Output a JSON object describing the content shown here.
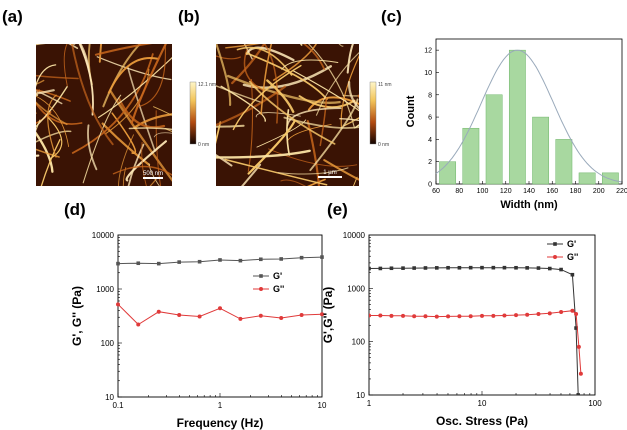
{
  "panels": {
    "a": "(a)",
    "b": "(b)",
    "c": "(c)",
    "d": "(d)",
    "e": "(e)"
  },
  "afm": [
    {
      "scale_max": "12.1 nm",
      "scale_min": "0 nm",
      "scale_bar": "500 nm",
      "seed": 7
    },
    {
      "scale_max": "11 nm",
      "scale_min": "0 nm",
      "scale_bar": "1 µm",
      "seed": 19
    }
  ],
  "chart_data": [
    {
      "type": "bar",
      "panel": "c",
      "xlabel": "Width (nm)",
      "ylabel": "Count",
      "x": [
        70,
        90,
        110,
        130,
        150,
        170,
        190,
        210
      ],
      "values": [
        2,
        5,
        8,
        12,
        6,
        4,
        1,
        1
      ],
      "xlim": [
        60,
        220
      ],
      "ylim": [
        0,
        13
      ],
      "xticks": [
        60,
        80,
        100,
        120,
        140,
        160,
        180,
        200,
        220
      ],
      "yticks": [
        0,
        2,
        4,
        6,
        8,
        10,
        12
      ],
      "fit": {
        "type": "gaussian",
        "mean": 130,
        "sigma": 31,
        "amplitude": 12
      },
      "colors": {
        "bar": "#a8d8a0",
        "bar_edge": "#6fb56a",
        "fit": "#9aaabb"
      }
    },
    {
      "type": "line",
      "panel": "d",
      "xscale": "log",
      "yscale": "log",
      "xlabel": "Frequency (Hz)",
      "ylabel": "G', G'' (Pa)",
      "xlim": [
        0.1,
        10
      ],
      "ylim": [
        10,
        10000
      ],
      "xticks": [
        "0.1",
        "1",
        "10"
      ],
      "yticks": [
        "10",
        "100",
        "1000",
        "10000"
      ],
      "legend_position": "right",
      "series": [
        {
          "name": "G'",
          "color": "#555555",
          "marker": "square",
          "x": [
            0.1,
            0.158,
            0.251,
            0.398,
            0.631,
            1.0,
            1.585,
            2.512,
            3.981,
            6.31,
            10
          ],
          "y": [
            2950,
            3000,
            2950,
            3150,
            3200,
            3450,
            3350,
            3550,
            3600,
            3800,
            3900
          ]
        },
        {
          "name": "G''",
          "color": "#e03a3a",
          "marker": "circle",
          "x": [
            0.1,
            0.158,
            0.251,
            0.398,
            0.631,
            1.0,
            1.585,
            2.512,
            3.981,
            6.31,
            10
          ],
          "y": [
            520,
            220,
            380,
            330,
            310,
            440,
            280,
            320,
            290,
            330,
            340
          ]
        }
      ]
    },
    {
      "type": "line",
      "panel": "e",
      "xscale": "log",
      "yscale": "log",
      "xlabel": "Osc. Stress (Pa)",
      "ylabel": "G',G'' (Pa)",
      "xlim": [
        1,
        100
      ],
      "ylim": [
        10,
        10000
      ],
      "xticks": [
        "1",
        "10",
        "100"
      ],
      "yticks": [
        "10",
        "100",
        "1000",
        "10000"
      ],
      "legend_position": "top-right",
      "series": [
        {
          "name": "G'",
          "color": "#333333",
          "marker": "square",
          "x": [
            1.0,
            1.26,
            1.58,
            2.0,
            2.51,
            3.16,
            3.98,
            5.01,
            6.31,
            7.94,
            10.0,
            12.6,
            15.8,
            20.0,
            25.1,
            31.6,
            39.8,
            50.1,
            63.1,
            68,
            71
          ],
          "y": [
            2350,
            2360,
            2380,
            2390,
            2400,
            2410,
            2420,
            2430,
            2430,
            2440,
            2440,
            2440,
            2440,
            2430,
            2420,
            2400,
            2350,
            2250,
            1800,
            180,
            10
          ]
        },
        {
          "name": "G''",
          "color": "#e03a3a",
          "marker": "circle",
          "x": [
            1.0,
            1.26,
            1.58,
            2.0,
            2.51,
            3.16,
            3.98,
            5.01,
            6.31,
            7.94,
            10.0,
            12.6,
            15.8,
            20.0,
            25.1,
            31.6,
            39.8,
            50.1,
            63.1,
            68,
            72,
            75
          ],
          "y": [
            310,
            310,
            305,
            305,
            300,
            300,
            295,
            298,
            300,
            300,
            305,
            305,
            310,
            315,
            320,
            330,
            340,
            360,
            380,
            330,
            80,
            25
          ]
        }
      ]
    }
  ]
}
